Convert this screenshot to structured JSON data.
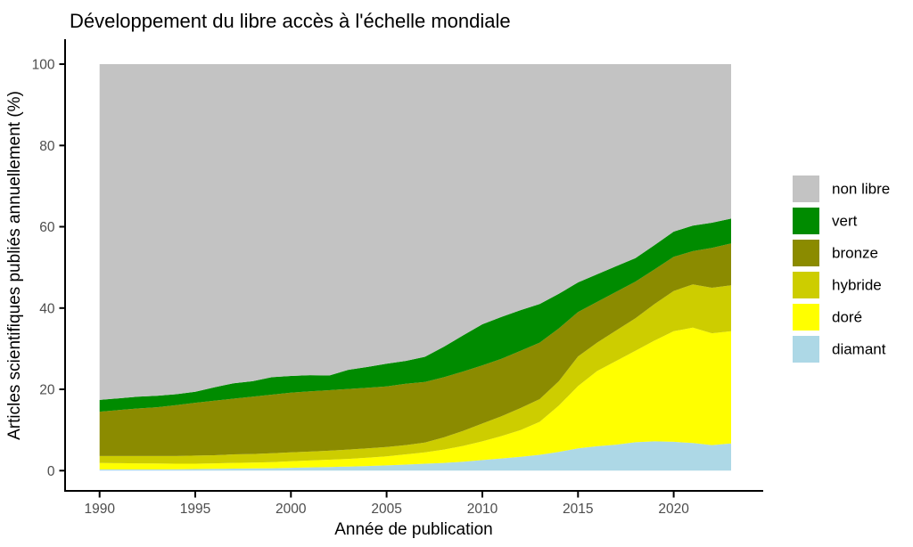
{
  "title": "Développement du libre accès à l'échelle mondiale",
  "chart_data": {
    "type": "area",
    "stacked": true,
    "title": "Développement du libre accès à l'échelle mondiale",
    "x_label": "Année de publication",
    "y_label": "Articles scientifiques publiés annuellement (%)",
    "x": [
      1990,
      1991,
      1992,
      1993,
      1994,
      1995,
      1996,
      1997,
      1998,
      1999,
      2000,
      2001,
      2002,
      2003,
      2004,
      2005,
      2006,
      2007,
      2008,
      2009,
      2010,
      2011,
      2012,
      2013,
      2014,
      2015,
      2016,
      2017,
      2018,
      2019,
      2020,
      2021,
      2022,
      2023
    ],
    "x_ticks": [
      1990,
      1995,
      2000,
      2005,
      2010,
      2015,
      2020
    ],
    "y_ticks": [
      0,
      20,
      40,
      60,
      80,
      100
    ],
    "y_range": [
      0,
      100
    ],
    "x_range": [
      1990,
      2023
    ],
    "grid": false,
    "legend_position": "right",
    "series": [
      {
        "name": "diamant",
        "color": "#ADD8E6",
        "values": [
          0.3,
          0.3,
          0.3,
          0.3,
          0.35,
          0.4,
          0.45,
          0.5,
          0.55,
          0.6,
          0.7,
          0.8,
          0.9,
          1.0,
          1.15,
          1.3,
          1.5,
          1.7,
          1.9,
          2.2,
          2.6,
          3.0,
          3.4,
          3.9,
          4.6,
          5.5,
          6.0,
          6.4,
          7.0,
          7.2,
          7.1,
          6.8,
          6.3,
          6.7
        ]
      },
      {
        "name": "doré",
        "color": "#FFFF00",
        "values": [
          1.6,
          1.55,
          1.5,
          1.45,
          1.35,
          1.3,
          1.35,
          1.4,
          1.45,
          1.5,
          1.6,
          1.7,
          1.8,
          1.9,
          2.05,
          2.2,
          2.5,
          2.8,
          3.3,
          3.9,
          4.6,
          5.5,
          6.6,
          8.1,
          11.4,
          15.3,
          18.5,
          20.6,
          22.5,
          24.8,
          27.2,
          28.4,
          27.5,
          27.6
        ]
      },
      {
        "name": "hybride",
        "color": "#CDCD00",
        "values": [
          1.7,
          1.75,
          1.8,
          1.85,
          1.9,
          2.0,
          2.0,
          2.1,
          2.1,
          2.2,
          2.2,
          2.2,
          2.2,
          2.3,
          2.3,
          2.3,
          2.3,
          2.4,
          3.0,
          3.7,
          4.4,
          4.9,
          5.4,
          5.6,
          6.0,
          7.3,
          7.0,
          7.5,
          8.0,
          9.0,
          9.9,
          10.6,
          11.2,
          11.3
        ]
      },
      {
        "name": "bronze",
        "color": "#8B8B00",
        "values": [
          10.9,
          11.3,
          11.7,
          12.0,
          12.5,
          13.0,
          13.4,
          13.7,
          14.1,
          14.4,
          14.7,
          14.8,
          14.9,
          14.9,
          14.9,
          14.9,
          15.1,
          14.9,
          14.8,
          14.6,
          14.3,
          14.1,
          14.1,
          13.9,
          13.0,
          10.9,
          10.0,
          9.5,
          9.0,
          8.5,
          8.4,
          8.2,
          9.8,
          10.3
        ]
      },
      {
        "name": "vert",
        "color": "#008B00",
        "values": [
          2.9,
          2.9,
          2.9,
          2.8,
          2.7,
          2.7,
          3.3,
          3.8,
          3.8,
          4.3,
          4.1,
          4.0,
          3.6,
          4.7,
          5.1,
          5.6,
          5.6,
          6.2,
          7.5,
          8.9,
          10.1,
          10.3,
          10.0,
          9.5,
          8.5,
          7.3,
          6.8,
          6.3,
          5.8,
          6.0,
          6.2,
          6.3,
          6.2,
          6.1
        ]
      },
      {
        "name": "non libre",
        "color": "#C3C3C3",
        "values": [
          82.6,
          82.2,
          81.8,
          81.6,
          81.2,
          80.6,
          79.5,
          78.5,
          78.0,
          77.0,
          76.7,
          76.5,
          76.6,
          75.2,
          74.5,
          73.7,
          73.0,
          72.0,
          69.5,
          66.7,
          64.0,
          62.2,
          60.5,
          59.0,
          56.5,
          53.7,
          51.7,
          49.7,
          47.7,
          44.5,
          41.2,
          39.7,
          39.0,
          38.0
        ]
      }
    ],
    "legend_order": [
      "non libre",
      "vert",
      "bronze",
      "hybride",
      "doré",
      "diamant"
    ]
  }
}
